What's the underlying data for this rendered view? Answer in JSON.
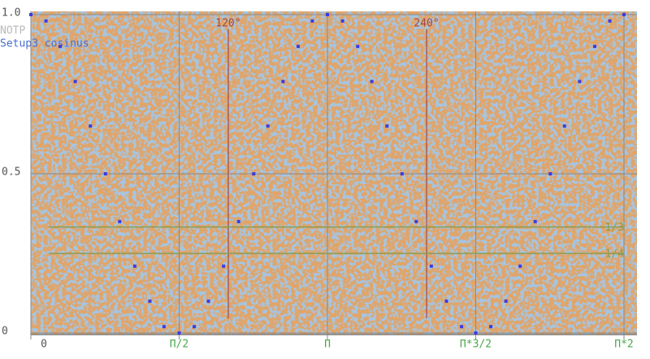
{
  "chart_data": {
    "type": "scatter",
    "title": "NOTP",
    "series": [
      {
        "name": "Setup3 cosinus",
        "color": "#3c3ce0",
        "x": [
          0,
          0.16,
          0.31,
          0.47,
          0.63,
          0.79,
          0.94,
          1.1,
          1.26,
          1.41,
          1.57,
          1.73,
          1.88,
          2.04,
          2.2,
          2.36,
          2.51,
          2.67,
          2.83,
          2.98,
          3.14,
          3.3,
          3.46,
          3.61,
          3.77,
          3.93,
          4.08,
          4.24,
          4.4,
          4.56,
          4.71,
          4.87,
          5.03,
          5.18,
          5.34,
          5.5,
          5.65,
          5.81,
          5.97,
          6.13,
          6.28
        ],
        "values": [
          1,
          0.98,
          0.9,
          0.79,
          0.65,
          0.5,
          0.35,
          0.21,
          0.1,
          0.02,
          0,
          0.02,
          0.1,
          0.21,
          0.35,
          0.5,
          0.65,
          0.79,
          0.9,
          0.98,
          1,
          0.98,
          0.9,
          0.79,
          0.65,
          0.5,
          0.35,
          0.21,
          0.1,
          0.02,
          0,
          0.02,
          0.1,
          0.21,
          0.35,
          0.5,
          0.65,
          0.79,
          0.9,
          0.98,
          1
        ]
      }
    ],
    "xlim": [
      0,
      6.28
    ],
    "ylim": [
      0,
      1
    ],
    "xticks": [
      0,
      {
        "value": 1.57,
        "label": "Π/2"
      },
      {
        "value": 3.14,
        "label": "Π"
      },
      {
        "value": 4.71,
        "label": "Π*3/2"
      },
      {
        "value": 6.28,
        "label": "Π*2"
      }
    ],
    "yticks": [
      0,
      0.5,
      {
        "value": 1,
        "label": "1.0"
      }
    ],
    "vlines": [
      {
        "value": 2.09,
        "label": "120°",
        "color": "#a04848"
      },
      {
        "value": 4.19,
        "label": "240°",
        "color": "#a04848"
      }
    ],
    "hlines": [
      {
        "value": 0.333,
        "label": "1/3",
        "color": "#8c9c4c"
      },
      {
        "value": 0.25,
        "label": "1/4",
        "color": "#8c9c4c"
      }
    ],
    "grid": true
  }
}
